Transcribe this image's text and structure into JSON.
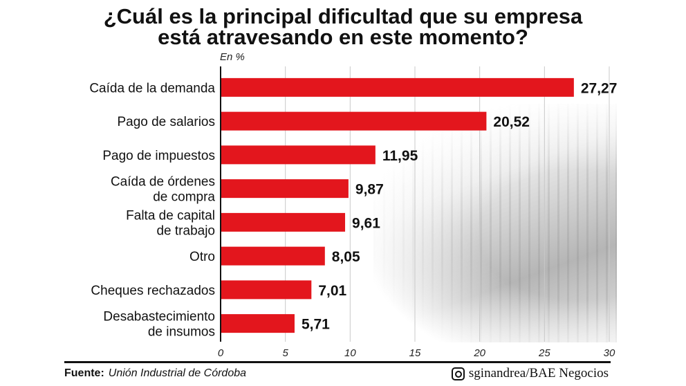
{
  "title_lines": [
    "¿Cuál es la principal dificultad que su empresa",
    "está atravesando en este momento?"
  ],
  "chart_data": {
    "type": "bar",
    "orientation": "horizontal",
    "unit_label": "En %",
    "categories": [
      [
        "Caída de la demanda"
      ],
      [
        "Pago de salarios"
      ],
      [
        "Pago de impuestos"
      ],
      [
        "Caída de órdenes",
        "de compra"
      ],
      [
        "Falta de capital",
        "de trabajo"
      ],
      [
        "Otro"
      ],
      [
        "Cheques rechazados"
      ],
      [
        "Desabastecimiento",
        "de insumos"
      ]
    ],
    "values": [
      27.27,
      20.52,
      11.95,
      9.87,
      9.61,
      8.05,
      7.01,
      5.71
    ],
    "value_labels": [
      "27,27",
      "20,52",
      "11,95",
      "9,87",
      "9,61",
      "8,05",
      "7,01",
      "5,71"
    ],
    "xlim": [
      0,
      30
    ],
    "ticks": [
      0,
      5,
      10,
      15,
      20,
      25,
      30
    ],
    "grid": true,
    "bar_color": "#e3161d"
  },
  "footer": {
    "source_label": "Fuente:",
    "source": "Unión Industrial de Córdoba",
    "credit": "sginandrea/BAE Negocios",
    "credit_icon": "instagram-icon"
  }
}
